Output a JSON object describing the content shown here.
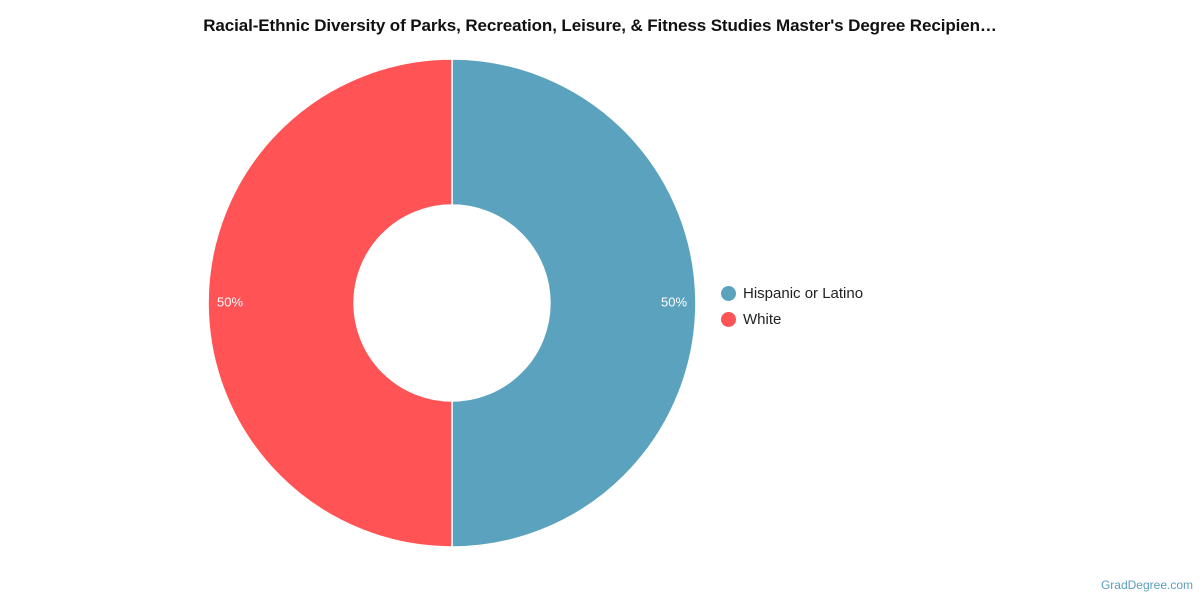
{
  "chart_data": {
    "type": "pie",
    "title": "Racial-Ethnic Diversity of Parks, Recreation, Leisure, & Fitness Studies Master's Degree Recipien…",
    "categories": [
      "Hispanic or Latino",
      "White"
    ],
    "values": [
      50,
      50
    ],
    "labels": [
      "50%",
      "50%"
    ],
    "colors": [
      "#5ba2bf",
      "#ff5355"
    ],
    "donut": true,
    "legend_position": "right"
  },
  "credit": "GradDegree.com"
}
